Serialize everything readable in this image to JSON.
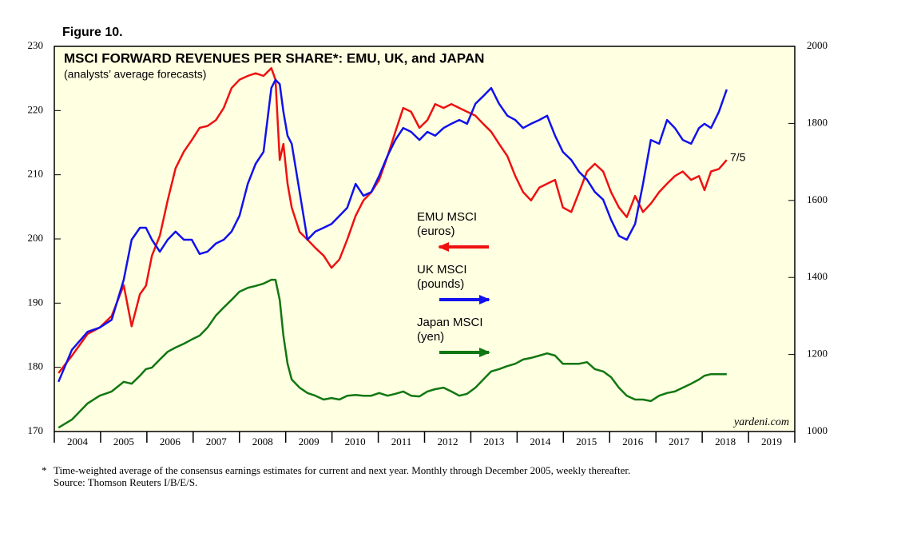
{
  "chart_data": {
    "type": "line",
    "figure_label": "Figure 10.",
    "title": "MSCI FORWARD REVENUES PER SHARE*: EMU, UK, and JAPAN",
    "subtitle": "(analysts’ average forecasts)",
    "annotation": "7/5",
    "watermark": "yardeni.com",
    "footnote_marker": "*",
    "footnote": "Time-weighted average of the consensus earnings estimates for current and next year. Monthly through December 2005, weekly thereafter.",
    "source": "Source: Thomson Reuters I/B/E/S.",
    "xlim": [
      2004,
      2020
    ],
    "xticks": [
      2004,
      2005,
      2006,
      2007,
      2008,
      2009,
      2010,
      2011,
      2012,
      2013,
      2014,
      2015,
      2016,
      2017,
      2018,
      2019,
      2020
    ],
    "xtick_labels": [
      {
        "value": 2004.5,
        "label": "2004"
      },
      {
        "value": 2005.5,
        "label": "2005"
      },
      {
        "value": 2006.5,
        "label": "2006"
      },
      {
        "value": 2007.5,
        "label": "2007"
      },
      {
        "value": 2008.5,
        "label": "2008"
      },
      {
        "value": 2009.5,
        "label": "2009"
      },
      {
        "value": 2010.5,
        "label": "2010"
      },
      {
        "value": 2011.5,
        "label": "2011"
      },
      {
        "value": 2012.5,
        "label": "2012"
      },
      {
        "value": 2013.5,
        "label": "2013"
      },
      {
        "value": 2014.5,
        "label": "2014"
      },
      {
        "value": 2015.5,
        "label": "2015"
      },
      {
        "value": 2016.5,
        "label": "2016"
      },
      {
        "value": 2017.5,
        "label": "2017"
      },
      {
        "value": 2018.5,
        "label": "2018"
      },
      {
        "value": 2019.5,
        "label": "2019"
      }
    ],
    "ylim": [
      170,
      230
    ],
    "yticks": [
      170,
      180,
      190,
      200,
      210,
      220,
      230
    ],
    "y2lim": [
      1000,
      2000
    ],
    "y2ticks": [
      1000,
      1200,
      1400,
      1600,
      1800,
      2000
    ],
    "x": [
      2004.09,
      2004.38,
      2004.72,
      2004.98,
      2005.24,
      2005.5,
      2005.67,
      2005.85,
      2005.98,
      2006.11,
      2006.28,
      2006.45,
      2006.62,
      2006.8,
      2006.97,
      2007.14,
      2007.31,
      2007.49,
      2007.66,
      2007.83,
      2008.0,
      2008.18,
      2008.35,
      2008.52,
      2008.69,
      2008.78,
      2008.87,
      2008.95,
      2009.04,
      2009.13,
      2009.3,
      2009.47,
      2009.64,
      2009.82,
      2009.99,
      2010.16,
      2010.33,
      2010.51,
      2010.68,
      2010.85,
      2011.02,
      2011.2,
      2011.37,
      2011.54,
      2011.71,
      2011.89,
      2012.06,
      2012.23,
      2012.41,
      2012.58,
      2012.75,
      2012.92,
      2013.1,
      2013.27,
      2013.44,
      2013.61,
      2013.79,
      2013.96,
      2014.13,
      2014.3,
      2014.48,
      2014.65,
      2014.82,
      2014.99,
      2015.17,
      2015.34,
      2015.51,
      2015.68,
      2015.86,
      2016.03,
      2016.2,
      2016.37,
      2016.55,
      2016.72,
      2016.89,
      2017.07,
      2017.24,
      2017.41,
      2017.58,
      2017.76,
      2017.93,
      2018.05,
      2018.19,
      2018.36,
      2018.53
    ],
    "series": [
      {
        "name": "EMU MSCI",
        "unit": "(euros)",
        "color": "#ee1111",
        "axis": "y",
        "values": [
          179.1,
          181.8,
          185.2,
          186.2,
          188,
          192.8,
          186.4,
          191.4,
          192.7,
          197.4,
          200.5,
          206,
          211,
          213.6,
          215.4,
          217.3,
          217.6,
          218.5,
          220.4,
          223.5,
          224.8,
          225.4,
          225.8,
          225.4,
          226.6,
          224.8,
          212.3,
          214.8,
          208.6,
          204.9,
          201.1,
          199.9,
          198.6,
          197.4,
          195.5,
          196.8,
          199.9,
          203.6,
          206,
          207.3,
          209.2,
          212.9,
          216.7,
          220.4,
          219.8,
          217.3,
          218.5,
          221,
          220.4,
          221,
          220.4,
          219.8,
          219.2,
          217.9,
          216.7,
          214.8,
          212.9,
          209.8,
          207.3,
          206,
          208,
          208.6,
          209.2,
          204.9,
          204.2,
          207.3,
          210.5,
          211.7,
          210.5,
          207.3,
          204.9,
          203.4,
          206.7,
          204.2,
          205.5,
          207.3,
          208.6,
          209.8,
          210.5,
          209.2,
          209.8,
          207.6,
          210.5,
          210.9,
          212.3
        ]
      },
      {
        "name": "UK MSCI",
        "unit": "(pounds)",
        "color": "#1111ee",
        "axis": "y2",
        "values": [
          1129,
          1212,
          1259,
          1270,
          1290,
          1394,
          1498,
          1529,
          1529,
          1498,
          1467,
          1498,
          1519,
          1498,
          1498,
          1461,
          1467,
          1488,
          1498,
          1519,
          1560,
          1643,
          1695,
          1726,
          1892,
          1913,
          1902,
          1830,
          1768,
          1747,
          1622,
          1498,
          1519,
          1529,
          1539,
          1560,
          1581,
          1643,
          1612,
          1622,
          1664,
          1716,
          1757,
          1788,
          1778,
          1757,
          1778,
          1768,
          1788,
          1799,
          1809,
          1799,
          1851,
          1871,
          1892,
          1851,
          1820,
          1809,
          1788,
          1799,
          1809,
          1820,
          1768,
          1726,
          1705,
          1674,
          1654,
          1622,
          1602,
          1550,
          1508,
          1498,
          1539,
          1643,
          1757,
          1747,
          1809,
          1788,
          1757,
          1747,
          1788,
          1799,
          1788,
          1830,
          1888
        ]
      },
      {
        "name": "Japan MSCI",
        "unit": "(yen)",
        "color": "#117711",
        "axis": "y2",
        "values": [
          1010,
          1031,
          1073,
          1093,
          1104,
          1129,
          1124,
          1145,
          1162,
          1166,
          1187,
          1207,
          1218,
          1228,
          1239,
          1249,
          1270,
          1301,
          1322,
          1342,
          1363,
          1373,
          1378,
          1384,
          1394,
          1394,
          1342,
          1249,
          1176,
          1135,
          1114,
          1100,
          1093,
          1083,
          1087,
          1083,
          1093,
          1095,
          1093,
          1093,
          1100,
          1093,
          1098,
          1104,
          1093,
          1091,
          1104,
          1110,
          1114,
          1104,
          1093,
          1098,
          1114,
          1135,
          1156,
          1162,
          1170,
          1176,
          1187,
          1191,
          1197,
          1203,
          1197,
          1176,
          1176,
          1176,
          1180,
          1162,
          1156,
          1141,
          1114,
          1093,
          1083,
          1083,
          1079,
          1093,
          1100,
          1104,
          1114,
          1124,
          1135,
          1145,
          1149,
          1149,
          1149
        ]
      }
    ]
  }
}
